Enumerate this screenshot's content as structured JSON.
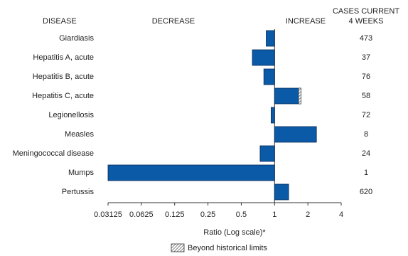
{
  "chart_data": {
    "type": "hbar",
    "headers": {
      "disease": "DISEASE",
      "decrease": "DECREASE",
      "increase": "INCREASE",
      "cases_line1": "CASES CURRENT",
      "cases_line2": "4 WEEKS"
    },
    "categories": [
      "Giardiasis",
      "Hepatitis A, acute",
      "Hepatitis B, acute",
      "Hepatitis C, acute",
      "Legionellosis",
      "Measles",
      "Meningococcal disease",
      "Mumps",
      "Pertussis"
    ],
    "values": [
      0.84,
      0.63,
      0.8,
      1.73,
      0.93,
      2.39,
      0.74,
      0.03125,
      1.34
    ],
    "beyond_limits_from": [
      null,
      null,
      null,
      1.65,
      null,
      null,
      null,
      null,
      null
    ],
    "cases": [
      473,
      37,
      76,
      58,
      72,
      8,
      24,
      1,
      620
    ],
    "color": "#0b5aa8",
    "log_scale": true,
    "xlim": [
      0.03125,
      4
    ],
    "xticks": [
      0.03125,
      0.0625,
      0.125,
      0.25,
      0.5,
      1,
      2,
      4
    ],
    "baseline": 1,
    "xlabel": "Ratio (Log scale)*",
    "legend_label": "Beyond historical limits"
  }
}
